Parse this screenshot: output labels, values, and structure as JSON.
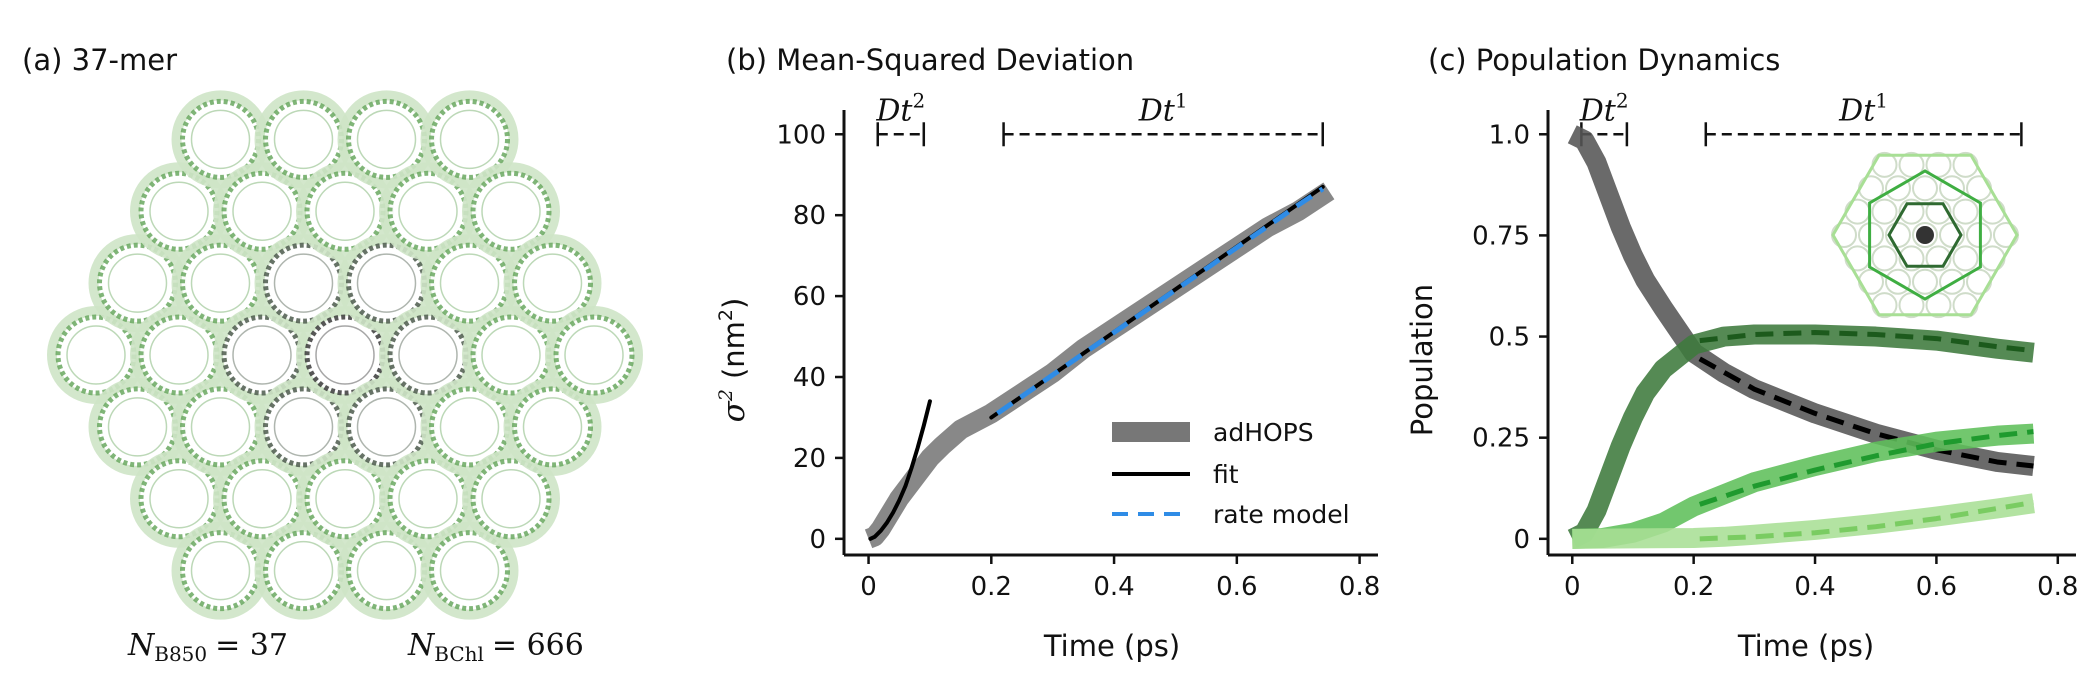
{
  "panel_a": {
    "title": "(a) 37-mer",
    "n_b850_label": "N",
    "n_b850_sub": "B850",
    "n_b850_value": "= 37",
    "n_bchl_label": "N",
    "n_bchl_sub": "BChl",
    "n_bchl_value": "= 666",
    "rings_total": 37
  },
  "chart_data": [
    {
      "type": "line",
      "title": "(b) Mean-Squared Deviation",
      "xlabel": "Time (ps)",
      "ylabel_main": "σ",
      "ylabel_sup": "2",
      "ylabel_unit_open": "(nm",
      "ylabel_unit_sup": "2",
      "ylabel_unit_close": ")",
      "xlim": [
        -0.04,
        0.83
      ],
      "ylim": [
        -4,
        106
      ],
      "xticks": [
        0,
        0.2,
        0.4,
        0.6,
        0.8
      ],
      "xtick_labels": [
        "0",
        "0.2",
        "0.4",
        "0.6",
        "0.8"
      ],
      "yticks": [
        0,
        20,
        40,
        60,
        80,
        100
      ],
      "ytick_labels": [
        "0",
        "20",
        "40",
        "60",
        "80",
        "100"
      ],
      "regime_brackets": [
        {
          "label": "Dt",
          "exponent": "2",
          "x_start": 0.015,
          "x_end": 0.09
        },
        {
          "label": "Dt",
          "exponent": "1",
          "x_start": 0.22,
          "x_end": 0.74
        }
      ],
      "bracket_y": 100,
      "legend": {
        "position": "lower-right",
        "entries": [
          "adHOPS",
          "fit",
          "rate model"
        ]
      },
      "series": [
        {
          "name": "adHOPS",
          "color": "#777777",
          "style": "thick",
          "x": [
            0,
            0.01,
            0.02,
            0.03,
            0.05,
            0.08,
            0.1,
            0.12,
            0.15,
            0.2,
            0.25,
            0.3,
            0.35,
            0.4,
            0.45,
            0.5,
            0.55,
            0.6,
            0.65,
            0.7,
            0.75
          ],
          "y": [
            0,
            0.6,
            2.5,
            5,
            10,
            16,
            20,
            23,
            27,
            31,
            36,
            41,
            47,
            52,
            57,
            62,
            67,
            72,
            77,
            81,
            86
          ]
        },
        {
          "name": "fit",
          "color": "#000000",
          "style": "solid",
          "x": [
            0.003,
            0.01,
            0.02,
            0.03,
            0.04,
            0.05,
            0.06,
            0.07,
            0.08,
            0.09,
            0.1
          ],
          "y": [
            0,
            0.5,
            2,
            4,
            6.5,
            9.5,
            13,
            17.5,
            22.5,
            28,
            34
          ]
        },
        {
          "name": "fit-linear",
          "color": "#000000",
          "style": "solid",
          "x": [
            0.2,
            0.74
          ],
          "y": [
            30,
            87
          ]
        },
        {
          "name": "rate model",
          "color": "#2f8ce6",
          "style": "dashed",
          "x": [
            0.21,
            0.3,
            0.4,
            0.5,
            0.6,
            0.7,
            0.74
          ],
          "y": [
            31,
            40.5,
            51,
            61.5,
            72,
            82.5,
            86.5
          ]
        }
      ]
    },
    {
      "type": "line",
      "title": "(c) Population Dynamics",
      "xlabel": "Time (ps)",
      "ylabel": "Population",
      "xlim": [
        -0.04,
        0.83
      ],
      "ylim": [
        -0.04,
        1.06
      ],
      "xticks": [
        0,
        0.2,
        0.4,
        0.6,
        0.8
      ],
      "xtick_labels": [
        "0",
        "0.2",
        "0.4",
        "0.6",
        "0.8"
      ],
      "yticks": [
        0,
        0.25,
        0.5,
        0.75,
        1.0
      ],
      "ytick_labels": [
        "0",
        "0.25",
        "0.5",
        "0.75",
        "1.0"
      ],
      "regime_brackets": [
        {
          "label": "Dt",
          "exponent": "2",
          "x_start": 0.015,
          "x_end": 0.09
        },
        {
          "label": "Dt",
          "exponent": "1",
          "x_start": 0.22,
          "x_end": 0.74
        }
      ],
      "bracket_y": 1.0,
      "series": [
        {
          "name": "center",
          "color": "#555555",
          "style": "thick",
          "x": [
            0,
            0.02,
            0.04,
            0.06,
            0.08,
            0.1,
            0.12,
            0.15,
            0.2,
            0.25,
            0.3,
            0.4,
            0.5,
            0.6,
            0.7,
            0.76
          ],
          "y": [
            1.0,
            0.985,
            0.93,
            0.85,
            0.77,
            0.7,
            0.64,
            0.57,
            0.46,
            0.41,
            0.37,
            0.31,
            0.26,
            0.22,
            0.19,
            0.18
          ]
        },
        {
          "name": "center-model",
          "color": "#000000",
          "style": "dashed",
          "x": [
            0.21,
            0.3,
            0.4,
            0.5,
            0.6,
            0.7,
            0.76
          ],
          "y": [
            0.445,
            0.37,
            0.31,
            0.26,
            0.22,
            0.19,
            0.18
          ]
        },
        {
          "name": "ring-1",
          "color": "#3e7a3c",
          "style": "thick",
          "x": [
            0,
            0.02,
            0.04,
            0.06,
            0.08,
            0.1,
            0.12,
            0.15,
            0.2,
            0.25,
            0.3,
            0.4,
            0.5,
            0.6,
            0.7,
            0.76
          ],
          "y": [
            0,
            0.015,
            0.07,
            0.15,
            0.23,
            0.3,
            0.36,
            0.42,
            0.48,
            0.5,
            0.505,
            0.505,
            0.5,
            0.49,
            0.47,
            0.46
          ]
        },
        {
          "name": "ring-1-model",
          "color": "#1c5a1c",
          "style": "dashed",
          "x": [
            0.21,
            0.3,
            0.4,
            0.5,
            0.6,
            0.7,
            0.76
          ],
          "y": [
            0.49,
            0.505,
            0.51,
            0.505,
            0.495,
            0.475,
            0.465
          ]
        },
        {
          "name": "ring-2",
          "color": "#5fbf5a",
          "style": "thick",
          "x": [
            0,
            0.05,
            0.1,
            0.15,
            0.2,
            0.25,
            0.3,
            0.4,
            0.5,
            0.6,
            0.7,
            0.76
          ],
          "y": [
            0,
            0.002,
            0.015,
            0.04,
            0.08,
            0.11,
            0.14,
            0.18,
            0.215,
            0.24,
            0.255,
            0.26
          ]
        },
        {
          "name": "ring-2-model",
          "color": "#1f9a2e",
          "style": "dashed",
          "x": [
            0.21,
            0.3,
            0.4,
            0.5,
            0.6,
            0.7,
            0.76
          ],
          "y": [
            0.085,
            0.13,
            0.17,
            0.205,
            0.235,
            0.255,
            0.265
          ]
        },
        {
          "name": "ring-3",
          "color": "#a8df95",
          "style": "thick",
          "x": [
            0,
            0.1,
            0.2,
            0.25,
            0.3,
            0.4,
            0.5,
            0.6,
            0.7,
            0.76
          ],
          "y": [
            0,
            0.001,
            0.002,
            0.005,
            0.01,
            0.022,
            0.037,
            0.055,
            0.075,
            0.088
          ]
        },
        {
          "name": "ring-3-model",
          "color": "#7acc62",
          "style": "dashed",
          "x": [
            0.21,
            0.3,
            0.4,
            0.5,
            0.6,
            0.7,
            0.76
          ],
          "y": [
            0.0,
            0.005,
            0.015,
            0.03,
            0.05,
            0.075,
            0.09
          ]
        }
      ]
    }
  ]
}
